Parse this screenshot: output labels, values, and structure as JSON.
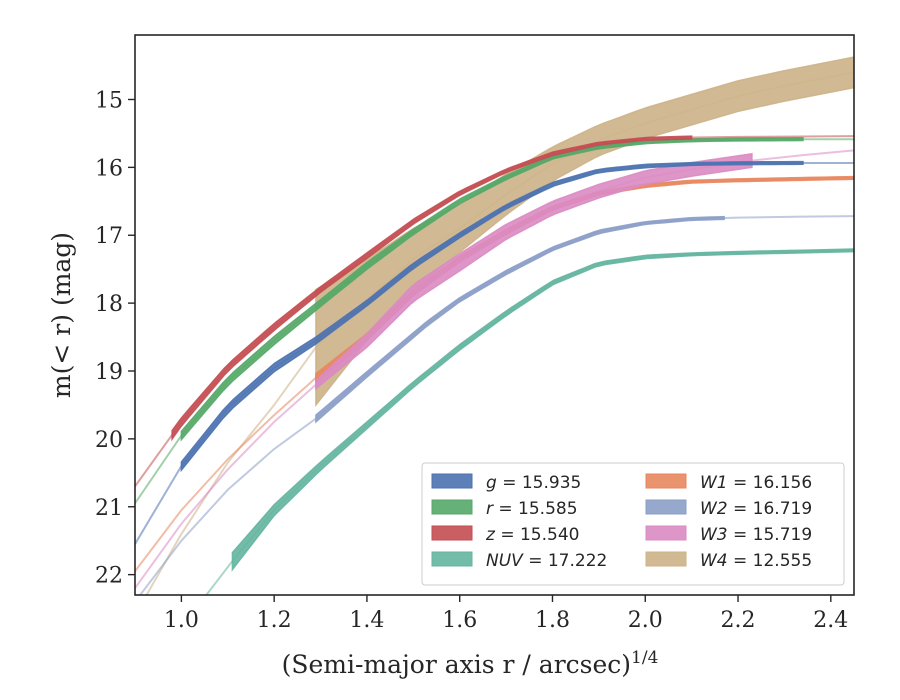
{
  "chart_data": {
    "type": "line",
    "xlabel": "(Semi-major axis r / arcsec)",
    "xlabel_superscript": "1/4",
    "ylabel": "m(< r) (mag)",
    "xlim": [
      0.9,
      2.45
    ],
    "ylim": [
      22.3,
      14.05
    ],
    "y_inverted": true,
    "grid": false,
    "legend_position": "lower-right",
    "x_ticks": [
      "1.0",
      "1.2",
      "1.4",
      "1.6",
      "1.8",
      "2.0",
      "2.2",
      "2.4"
    ],
    "y_ticks": [
      "15",
      "16",
      "17",
      "18",
      "19",
      "20",
      "21",
      "22"
    ],
    "series": [
      {
        "name": "g",
        "legend": "g = 15.935",
        "color": "#4c72b0",
        "band_start_x": 1.0,
        "band_end_x": 2.34,
        "x": [
          0.9,
          1.0,
          1.1,
          1.2,
          1.29,
          1.4,
          1.5,
          1.6,
          1.7,
          1.8,
          1.9,
          2.0,
          2.1,
          2.2,
          2.34,
          2.45
        ],
        "y": [
          21.55,
          20.4,
          19.55,
          18.95,
          18.55,
          18.0,
          17.45,
          17.0,
          16.58,
          16.25,
          16.05,
          15.98,
          15.95,
          15.94,
          15.935,
          15.935
        ],
        "width": [
          0.1,
          0.12,
          0.12,
          0.12,
          0.1,
          0.08,
          0.08,
          0.07,
          0.06,
          0.06,
          0.05,
          0.05,
          0.04,
          0.04,
          0.04,
          0.04
        ]
      },
      {
        "name": "r",
        "legend": "r = 15.585",
        "color": "#55a868",
        "band_start_x": 1.0,
        "band_end_x": 2.34,
        "x": [
          0.9,
          1.0,
          1.1,
          1.2,
          1.3,
          1.4,
          1.5,
          1.6,
          1.7,
          1.8,
          1.9,
          2.0,
          2.1,
          2.2,
          2.34,
          2.45
        ],
        "y": [
          20.95,
          19.95,
          19.15,
          18.55,
          18.0,
          17.45,
          16.95,
          16.5,
          16.15,
          15.85,
          15.7,
          15.63,
          15.6,
          15.59,
          15.585,
          15.585
        ],
        "width": [
          0.1,
          0.12,
          0.12,
          0.12,
          0.1,
          0.1,
          0.08,
          0.07,
          0.06,
          0.05,
          0.05,
          0.04,
          0.04,
          0.04,
          0.04,
          0.04
        ]
      },
      {
        "name": "z",
        "legend": "z = 15.540",
        "color": "#c44e52",
        "band_start_x": 0.98,
        "band_end_x": 2.1,
        "x": [
          0.9,
          1.0,
          1.1,
          1.2,
          1.3,
          1.4,
          1.5,
          1.6,
          1.7,
          1.8,
          1.9,
          2.0,
          2.1,
          2.2,
          2.34,
          2.45
        ],
        "y": [
          20.7,
          19.75,
          18.95,
          18.35,
          17.8,
          17.3,
          16.8,
          16.38,
          16.05,
          15.8,
          15.65,
          15.58,
          15.56,
          15.55,
          15.545,
          15.54
        ],
        "width": [
          0.14,
          0.12,
          0.1,
          0.1,
          0.08,
          0.08,
          0.07,
          0.06,
          0.05,
          0.05,
          0.04,
          0.04,
          0.04,
          0.04,
          0.04,
          0.04
        ]
      },
      {
        "name": "NUV",
        "legend": "NUV = 17.222",
        "color": "#64b5a0",
        "band_start_x": 1.11,
        "band_end_x": 2.45,
        "x": [
          1.02,
          1.11,
          1.2,
          1.3,
          1.4,
          1.5,
          1.6,
          1.7,
          1.8,
          1.9,
          2.0,
          2.1,
          2.2,
          2.34,
          2.45
        ],
        "y": [
          22.6,
          21.8,
          21.05,
          20.4,
          19.8,
          19.2,
          18.65,
          18.15,
          17.7,
          17.42,
          17.32,
          17.28,
          17.26,
          17.24,
          17.222
        ],
        "width": [
          0.2,
          0.25,
          0.16,
          0.12,
          0.1,
          0.08,
          0.08,
          0.07,
          0.06,
          0.05,
          0.05,
          0.04,
          0.04,
          0.04,
          0.04
        ]
      },
      {
        "name": "W1",
        "legend": "W1 = 16.156",
        "color": "#e8875f",
        "band_start_x": 1.29,
        "band_end_x": 2.45,
        "x": [
          0.9,
          1.0,
          1.1,
          1.2,
          1.29,
          1.4,
          1.5,
          1.6,
          1.7,
          1.8,
          1.9,
          2.0,
          2.1,
          2.2,
          2.34,
          2.45
        ],
        "y": [
          21.95,
          21.05,
          20.3,
          19.65,
          19.1,
          18.5,
          17.85,
          17.35,
          16.95,
          16.6,
          16.38,
          16.27,
          16.21,
          16.19,
          16.17,
          16.156
        ],
        "width": [
          0.12,
          0.12,
          0.12,
          0.12,
          0.12,
          0.1,
          0.08,
          0.08,
          0.07,
          0.06,
          0.05,
          0.05,
          0.04,
          0.04,
          0.04,
          0.04
        ]
      },
      {
        "name": "W2",
        "legend": "W2 = 16.719",
        "color": "#8c9ec8",
        "band_start_x": 1.29,
        "band_end_x": 2.17,
        "x": [
          0.9,
          1.0,
          1.1,
          1.2,
          1.29,
          1.4,
          1.53,
          1.6,
          1.7,
          1.8,
          1.9,
          2.0,
          2.1,
          2.2,
          2.34,
          2.45
        ],
        "y": [
          22.4,
          21.5,
          20.75,
          20.15,
          19.7,
          19.05,
          18.3,
          17.95,
          17.55,
          17.2,
          16.95,
          16.82,
          16.76,
          16.74,
          16.725,
          16.719
        ],
        "width": [
          0.1,
          0.1,
          0.1,
          0.1,
          0.1,
          0.08,
          0.07,
          0.06,
          0.06,
          0.05,
          0.05,
          0.04,
          0.04,
          0.04,
          0.04,
          0.04
        ]
      },
      {
        "name": "W3",
        "legend": "W3 = 15.719",
        "color": "#da8bc3",
        "band_start_x": 1.29,
        "band_end_x": 2.23,
        "x": [
          0.9,
          1.0,
          1.1,
          1.2,
          1.29,
          1.4,
          1.5,
          1.6,
          1.7,
          1.8,
          1.9,
          2.0,
          2.1,
          2.23,
          2.34,
          2.45
        ],
        "y": [
          22.2,
          21.25,
          20.45,
          19.75,
          19.2,
          18.55,
          17.85,
          17.4,
          16.95,
          16.6,
          16.35,
          16.15,
          16.03,
          15.9,
          15.82,
          15.75
        ],
        "width": [
          0.12,
          0.12,
          0.12,
          0.12,
          0.12,
          0.2,
          0.25,
          0.25,
          0.22,
          0.2,
          0.2,
          0.2,
          0.2,
          0.2,
          0.06,
          0.06
        ]
      },
      {
        "name": "W4",
        "legend": "W4 = 12.555",
        "color": "#ccb287",
        "band_start_x": 1.29,
        "band_end_x": 2.45,
        "x": [
          0.9,
          1.0,
          1.1,
          1.2,
          1.29,
          1.4,
          1.5,
          1.6,
          1.7,
          1.8,
          1.9,
          2.0,
          2.1,
          2.2,
          2.3,
          2.45
        ],
        "y": [
          22.6,
          21.4,
          20.35,
          19.5,
          18.65,
          17.95,
          17.35,
          16.9,
          16.4,
          15.95,
          15.6,
          15.35,
          15.15,
          14.95,
          14.8,
          14.6
        ],
        "width": [
          0.1,
          0.1,
          0.1,
          0.1,
          1.7,
          1.2,
          0.9,
          0.7,
          0.6,
          0.5,
          0.45,
          0.45,
          0.45,
          0.45,
          0.45,
          0.45
        ]
      }
    ]
  },
  "legend": {
    "columns": [
      [
        {
          "sym": "g",
          "value": " = 15.935",
          "color": "#4c72b0"
        },
        {
          "sym": "r",
          "value": " = 15.585",
          "color": "#55a868"
        },
        {
          "sym": "z",
          "value": " = 15.540",
          "color": "#c44e52"
        },
        {
          "sym": "NUV",
          "value": " = 17.222",
          "color": "#64b5a0"
        }
      ],
      [
        {
          "sym": "W1",
          "value": " = 16.156",
          "color": "#e8875f"
        },
        {
          "sym": "W2",
          "value": " = 16.719",
          "color": "#8c9ec8"
        },
        {
          "sym": "W3",
          "value": " = 15.719",
          "color": "#da8bc3"
        },
        {
          "sym": "W4",
          "value": " = 12.555",
          "color": "#ccb287"
        }
      ]
    ]
  }
}
